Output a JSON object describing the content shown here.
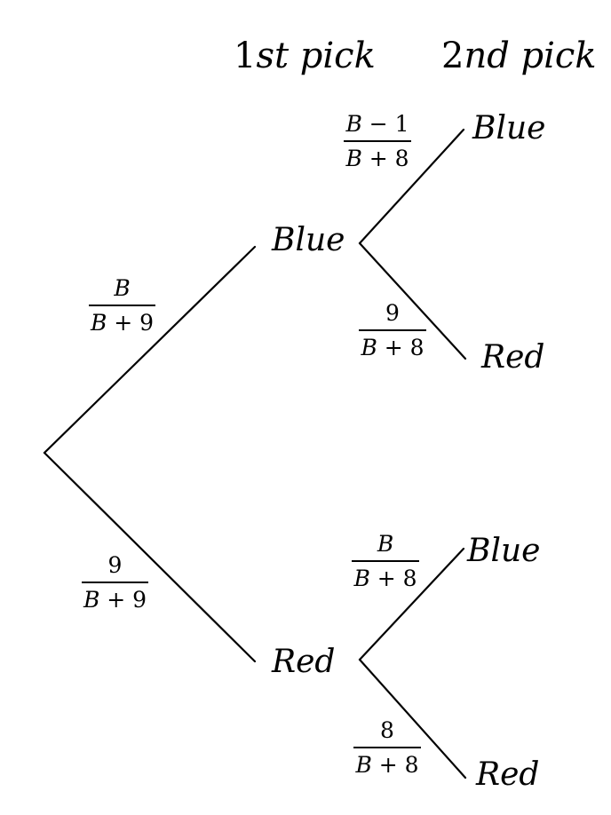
{
  "headers": {
    "first": {
      "ordinal": "1",
      "suffix": "st pick"
    },
    "second": {
      "ordinal": "2",
      "suffix": "nd pick"
    }
  },
  "nodes": {
    "first_blue": "Blue",
    "first_red": "Red",
    "blue_blue": "Blue",
    "blue_red": "Red",
    "red_blue": "Blue",
    "red_red": "Red"
  },
  "probabilities": {
    "root_blue": {
      "num_var": "B",
      "num_rest": "",
      "den_var": "B",
      "den_rest": " + 9"
    },
    "root_red": {
      "num_var": "",
      "num_rest": "9",
      "den_var": "B",
      "den_rest": " + 9"
    },
    "blue_blue": {
      "num_var": "B",
      "num_rest": " − 1",
      "den_var": "B",
      "den_rest": " + 8"
    },
    "blue_red": {
      "num_var": "",
      "num_rest": "9",
      "den_var": "B",
      "den_rest": " + 8"
    },
    "red_blue": {
      "num_var": "B",
      "num_rest": "",
      "den_var": "B",
      "den_rest": " + 8"
    },
    "red_red": {
      "num_var": "",
      "num_rest": "8",
      "den_var": "B",
      "den_rest": " + 8"
    }
  }
}
